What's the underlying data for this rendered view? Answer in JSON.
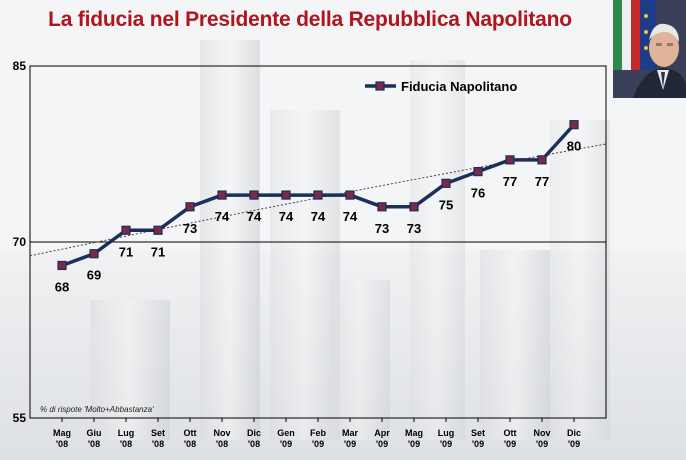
{
  "title": "La fiducia nel Presidente della Repubblica Napolitano",
  "footnote": "% di rispote 'Molto+Abbastanza'",
  "colors": {
    "title": "#b0141e",
    "line": "#1b2f5a",
    "marker": "#7a2a48",
    "trend": "#444444"
  },
  "chart_data": {
    "type": "line",
    "title": "La fiducia nel Presidente della Repubblica Napolitano",
    "categories": [
      [
        "Mag",
        "'08"
      ],
      [
        "Giu",
        "'08"
      ],
      [
        "Lug",
        "'08"
      ],
      [
        "Set",
        "'08"
      ],
      [
        "Ott",
        "'08"
      ],
      [
        "Nov",
        "'08"
      ],
      [
        "Dic",
        "'08"
      ],
      [
        "Gen",
        "'09"
      ],
      [
        "Feb",
        "'09"
      ],
      [
        "Mar",
        "'09"
      ],
      [
        "Apr",
        "'09"
      ],
      [
        "Mag",
        "'09"
      ],
      [
        "Lug",
        "'09"
      ],
      [
        "Set",
        "'09"
      ],
      [
        "Ott",
        "'09"
      ],
      [
        "Nov",
        "'09"
      ],
      [
        "Dic",
        "'09"
      ]
    ],
    "series": [
      {
        "name": "Fiducia Napolitano",
        "values": [
          68,
          69,
          71,
          71,
          73,
          74,
          74,
          74,
          74,
          74,
          73,
          73,
          75,
          76,
          77,
          77,
          80
        ],
        "labels": [
          "68",
          "69",
          "71",
          "71",
          "73",
          "74",
          "74",
          "74",
          "74",
          "74",
          "73",
          "73",
          "75",
          "76",
          "77",
          "77",
          "80"
        ]
      }
    ],
    "ylim": [
      55,
      85
    ],
    "yticks": [
      "55",
      "70",
      "85"
    ],
    "gridlines": [
      70
    ],
    "legend": "top-right",
    "trendline": true
  }
}
